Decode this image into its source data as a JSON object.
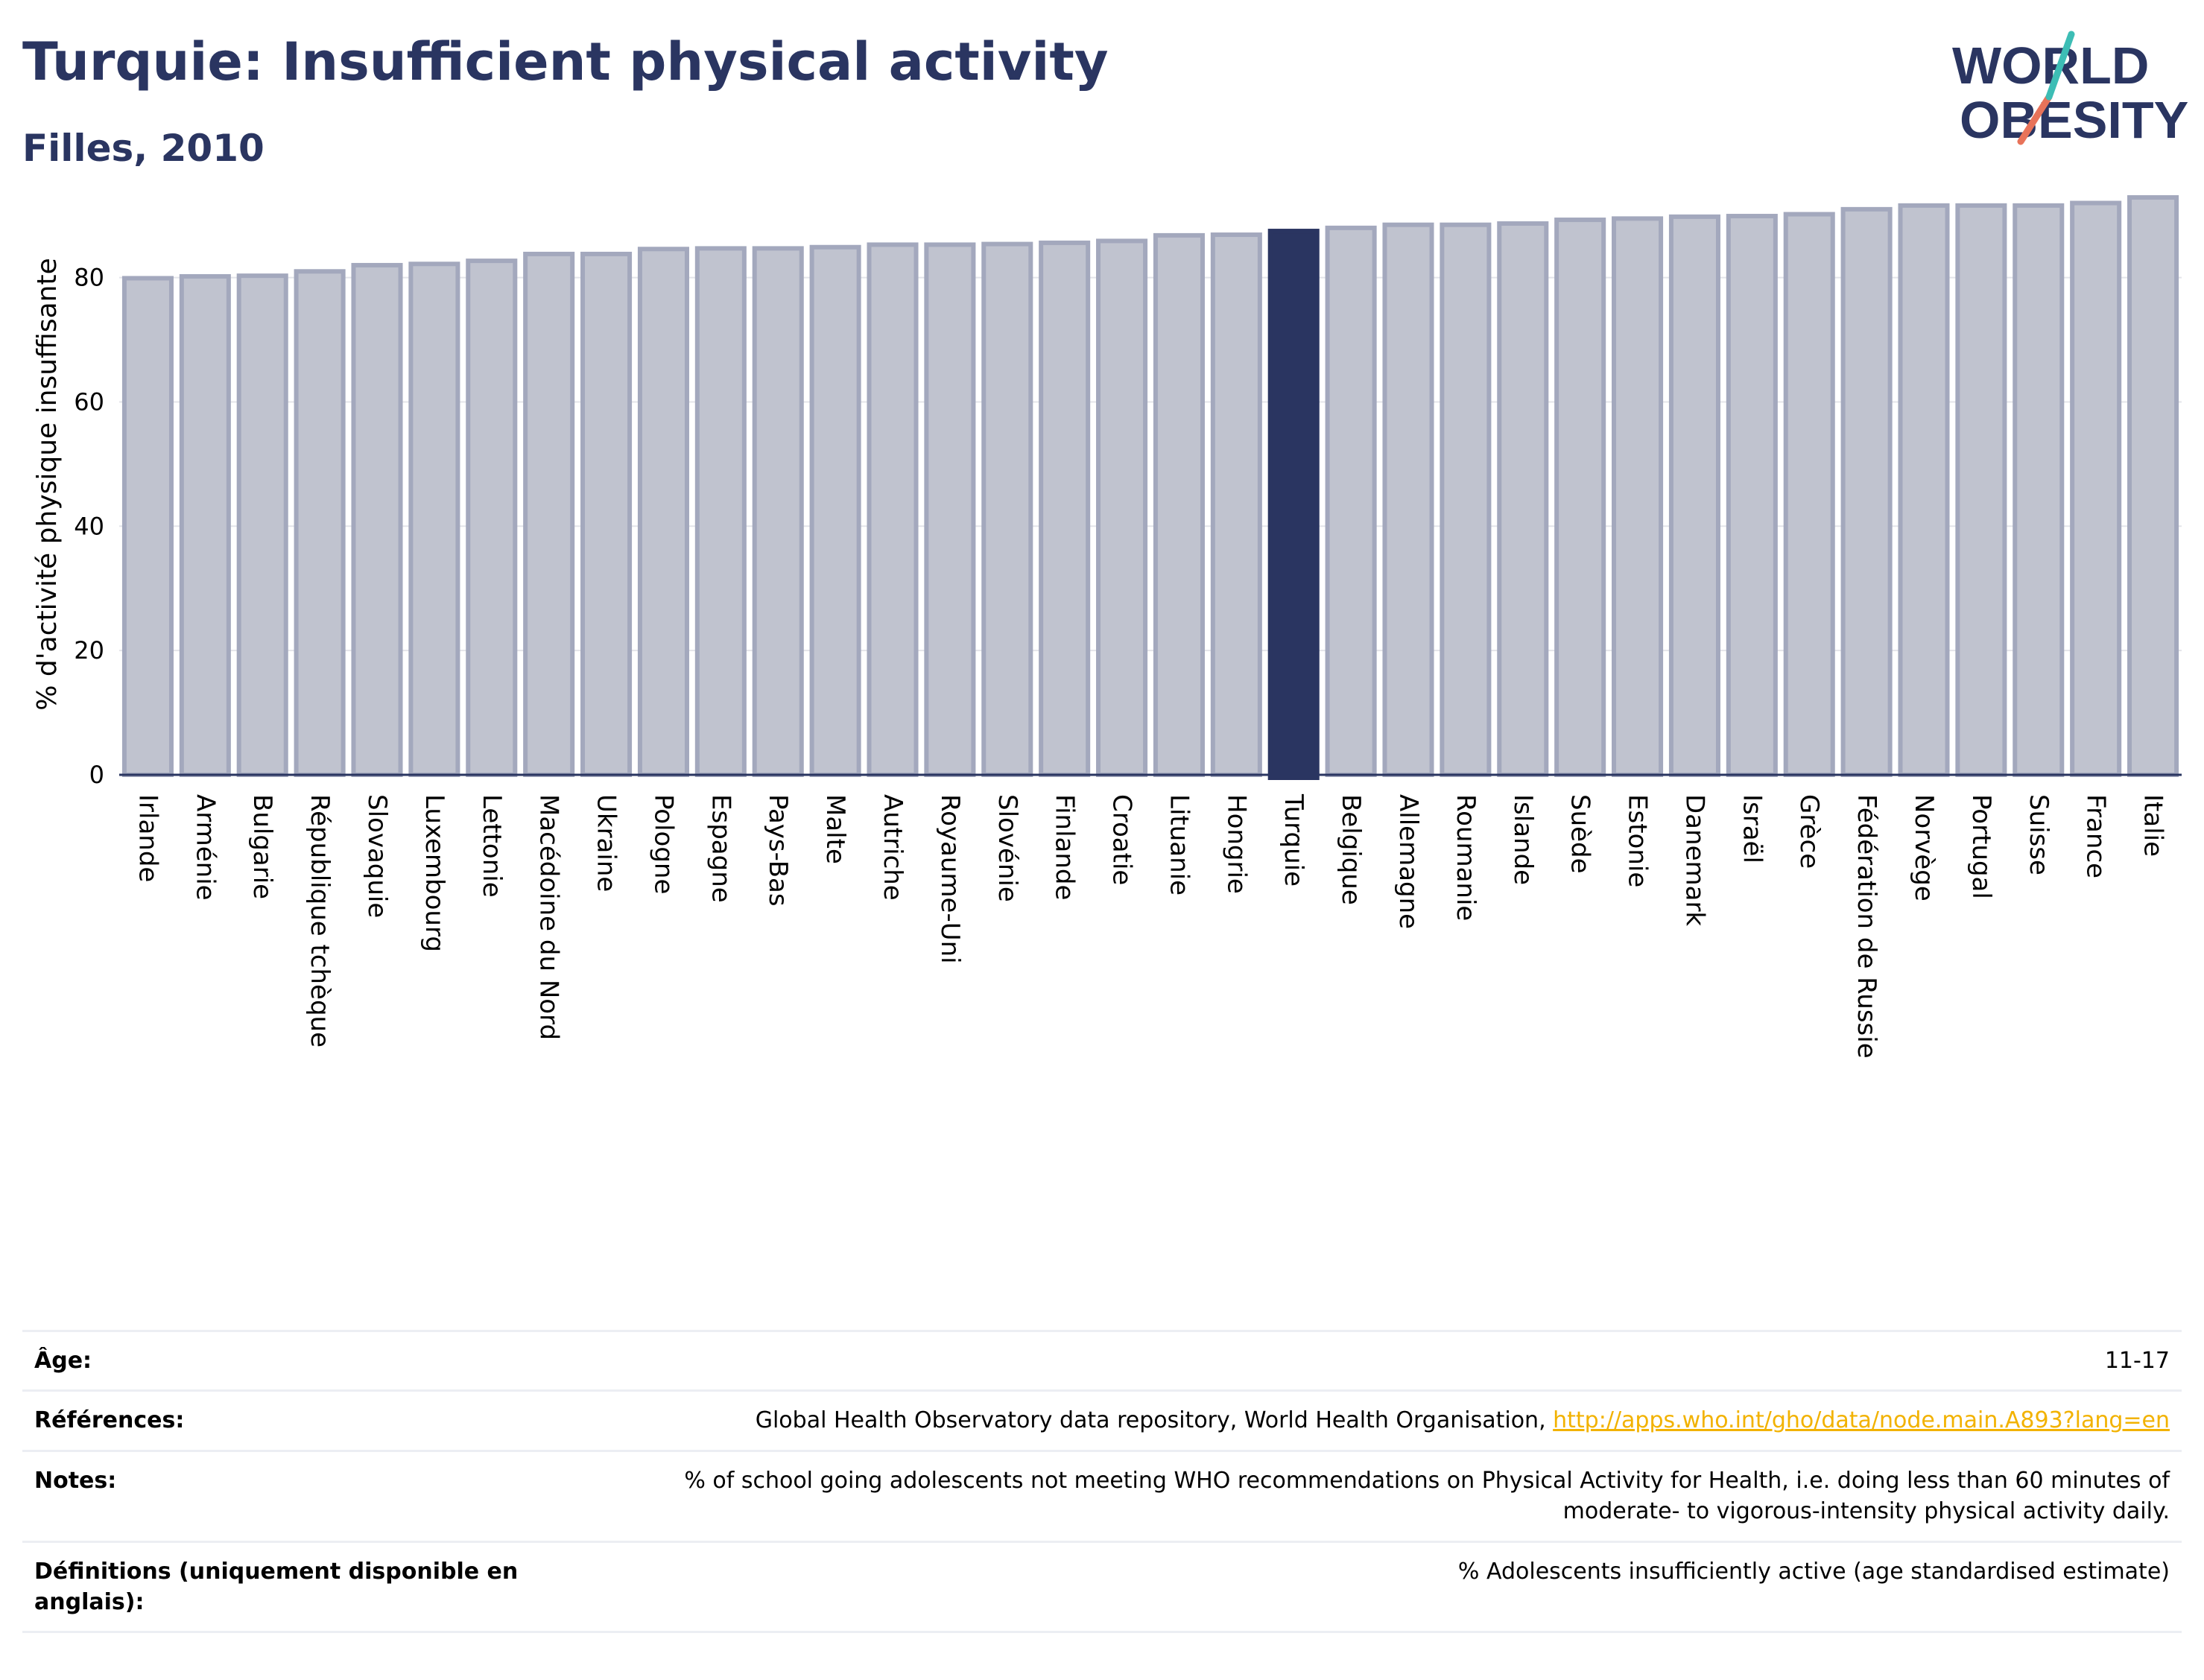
{
  "header": {
    "title": "Turquie: Insufficient physical activity",
    "subtitle": "Filles, 2010"
  },
  "logo": {
    "line1": "WORLD",
    "line2": "OBESITY"
  },
  "chart_data": {
    "type": "bar",
    "ylabel": "% d'activité physique insuffisante",
    "xlabel": "",
    "ylim": [
      0,
      93.5
    ],
    "yticks": [
      0,
      20,
      40,
      60,
      80
    ],
    "grid": true,
    "highlight": "Turquie",
    "categories": [
      "Irlande",
      "Arménie",
      "Bulgarie",
      "République tchèque",
      "Slovaquie",
      "Luxembourg",
      "Lettonie",
      "Macédoine du Nord",
      "Ukraine",
      "Pologne",
      "Espagne",
      "Pays-Bas",
      "Malte",
      "Autriche",
      "Royaume-Uni",
      "Slovénie",
      "Finlande",
      "Croatie",
      "Lituanie",
      "Hongrie",
      "Turquie",
      "Belgique",
      "Allemagne",
      "Roumanie",
      "Islande",
      "Suède",
      "Estonie",
      "Danemark",
      "Israël",
      "Grèce",
      "Fédération de Russie",
      "Norvège",
      "Portugal",
      "Suisse",
      "France",
      "Italie"
    ],
    "values": [
      79.9,
      80.2,
      80.3,
      81.0,
      82.0,
      82.2,
      82.7,
      83.8,
      83.8,
      84.6,
      84.7,
      84.7,
      84.9,
      85.3,
      85.3,
      85.4,
      85.6,
      85.9,
      86.8,
      86.9,
      87.5,
      88.0,
      88.5,
      88.5,
      88.7,
      89.3,
      89.5,
      89.8,
      89.9,
      90.2,
      91.0,
      91.6,
      91.6,
      91.6,
      92.0,
      92.9
    ],
    "colors": {
      "bar": "#c0c3cf",
      "bar_outline": "#a3a8bd",
      "highlight": "#2a3561",
      "grid": "#e4e5ea"
    }
  },
  "meta": [
    {
      "key": "Âge:",
      "value": "11-17"
    },
    {
      "key": "Références:",
      "value": "Global Health Observatory data repository, World Health Organisation, ",
      "link": "http://apps.who.int/gho/data/node.main.A893?lang=en"
    },
    {
      "key": "Notes:",
      "value": "% of school going adolescents not meeting WHO recommendations on Physical Activity for Health, i.e. doing less than 60 minutes of moderate- to vigorous-intensity physical activity daily."
    },
    {
      "key": "Définitions (uniquement disponible en anglais):",
      "value": "% Adolescents insufficiently active (age standardised estimate)"
    }
  ]
}
